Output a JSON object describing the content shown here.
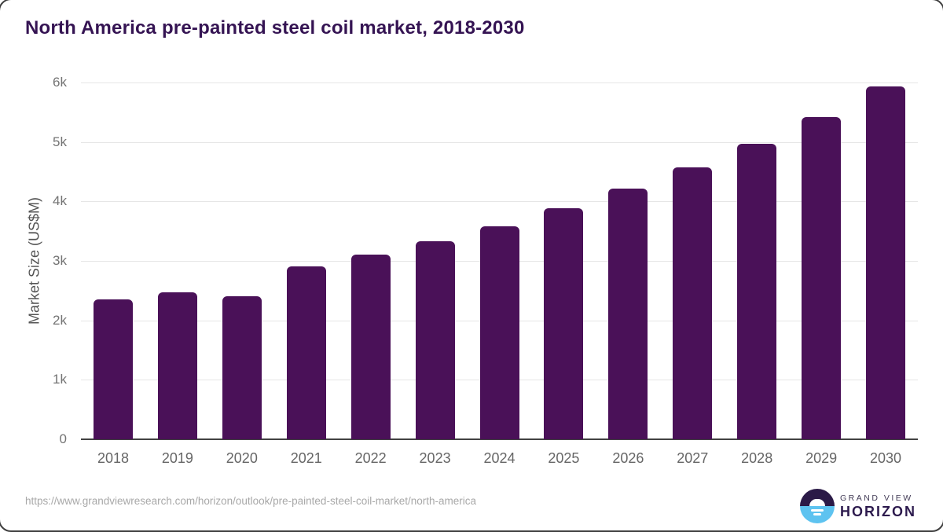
{
  "chart_data": {
    "type": "bar",
    "title": "North America pre-painted steel coil market, 2018-2030",
    "ylabel": "Market Size (US$M)",
    "xlabel": "",
    "categories": [
      "2018",
      "2019",
      "2020",
      "2021",
      "2022",
      "2023",
      "2024",
      "2025",
      "2026",
      "2027",
      "2028",
      "2029",
      "2030"
    ],
    "values": [
      2350,
      2470,
      2400,
      2910,
      3110,
      3330,
      3580,
      3890,
      4220,
      4570,
      4970,
      5420,
      5930
    ],
    "ylim": [
      0,
      6000
    ],
    "ytick_labels": [
      "6k",
      "5k",
      "4k",
      "3k",
      "2k",
      "1k",
      "0"
    ],
    "ytick_values": [
      6000,
      5000,
      4000,
      3000,
      2000,
      1000,
      0
    ],
    "grid": true,
    "legend": false,
    "bar_color": "#4a1158",
    "title_color": "#351453",
    "axis_label_color": "#666666",
    "gridline_color": "#e6e6e6"
  },
  "footer": {
    "source_url": "https://www.grandviewresearch.com/horizon/outlook/pre-painted-steel-coil-market/north-america"
  },
  "logo": {
    "brand_top": "GRAND VIEW",
    "brand_bottom": "HORIZON",
    "circle_top_color": "#2b1a47",
    "circle_bottom_color": "#5ec3f0"
  }
}
